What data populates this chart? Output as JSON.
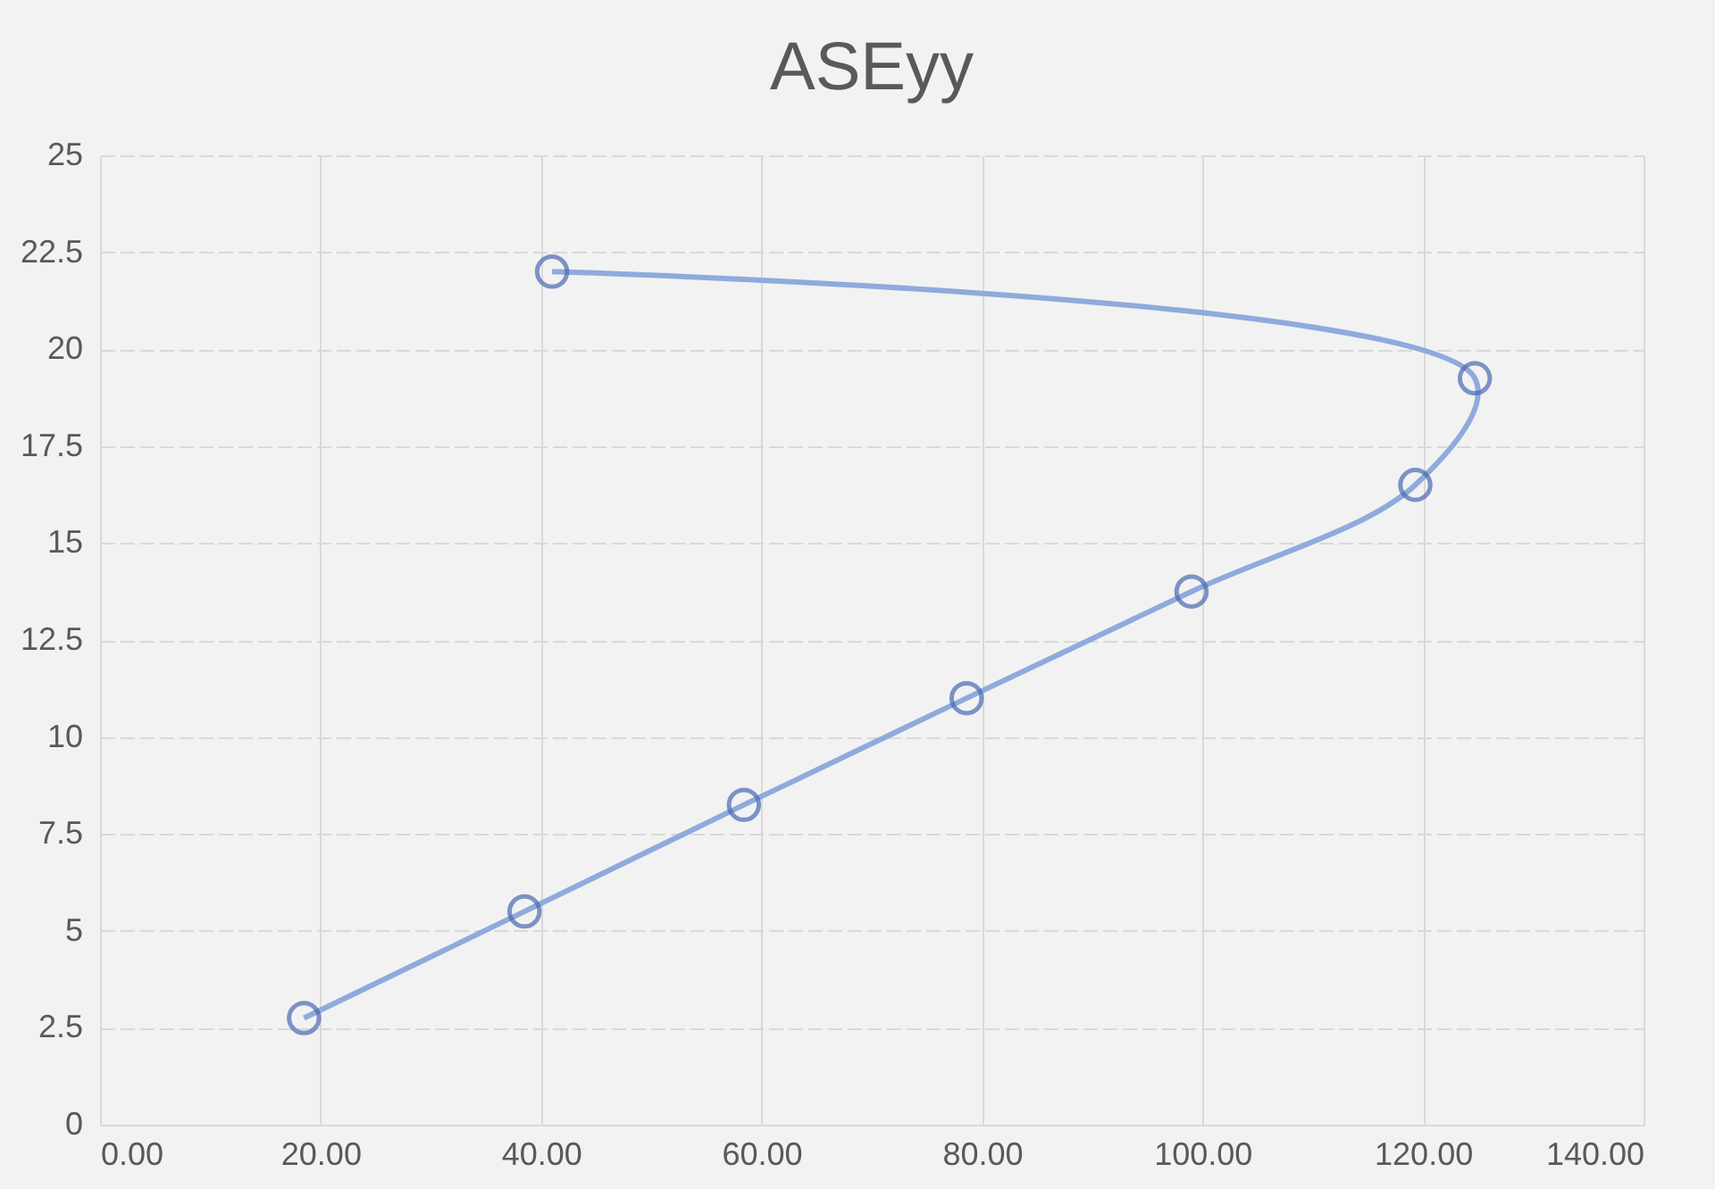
{
  "chart_data": {
    "type": "line",
    "title": "ASEyy",
    "x": [
      18.5,
      38.5,
      58.4,
      78.6,
      99.0,
      119.3,
      124.7,
      41.0
    ],
    "series": [
      {
        "color": "#4a6ab0",
        "values": [
          2.75,
          5.5,
          8.25,
          11.0,
          13.75,
          16.5,
          19.25,
          22.0
        ]
      }
    ],
    "line_style": "solid",
    "marker": "circle",
    "grid": true,
    "xlim": [
      0,
      140
    ],
    "xticks": [
      {
        "value": 0,
        "label": "0.00"
      },
      {
        "value": 20,
        "label": "20.00"
      },
      {
        "value": 40,
        "label": "40.00"
      },
      {
        "value": 60,
        "label": "60.00"
      },
      {
        "value": 80,
        "label": "80.00"
      },
      {
        "value": 100,
        "label": "100.00"
      },
      {
        "value": 120,
        "label": "120.00"
      },
      {
        "value": 140,
        "label": "140.00"
      }
    ],
    "ylim": [
      0,
      25
    ],
    "yticks": [
      0,
      2.5,
      5,
      7.5,
      10,
      12.5,
      15,
      17.5,
      20,
      22.5,
      25
    ]
  }
}
